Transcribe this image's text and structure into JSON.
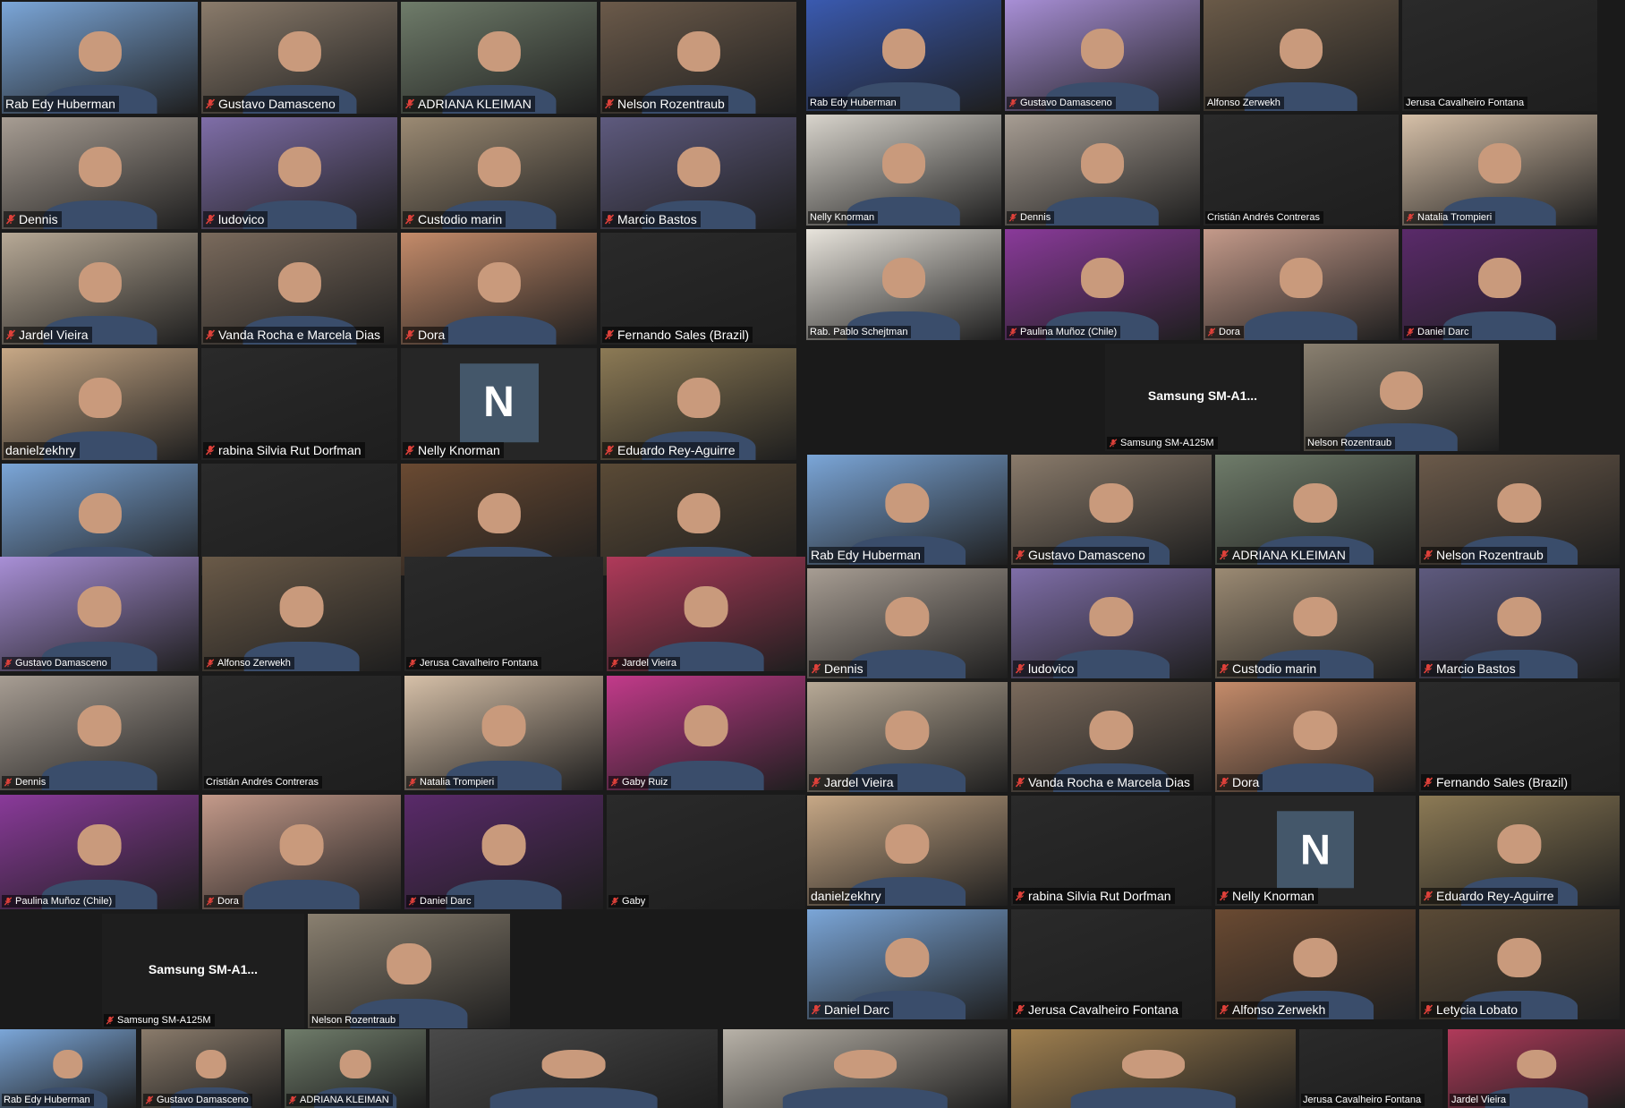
{
  "theme": {
    "background": "#1a1a1a",
    "speaking_border": "#d2e34a",
    "label_bg": "rgba(0,0,0,0.55)",
    "mic_muted_color": "#e0413a",
    "avatar_bg": "#44576a"
  },
  "icons": {
    "muted": "mic-muted-icon"
  },
  "panels": [
    {
      "id": "left",
      "tiles": [
        {
          "name": "Rab Edy Huberman",
          "muted": false,
          "bg": "#7ba6d8"
        },
        {
          "name": "Gustavo Damasceno",
          "muted": true,
          "bg": "#8a7b6b"
        },
        {
          "name": "ADRIANA KLEIMAN",
          "muted": true,
          "bg": "#6f7c6a"
        },
        {
          "name": "Nelson Rozentraub",
          "muted": true,
          "bg": "#6b5a4a"
        },
        {
          "name": "Dennis",
          "muted": true,
          "bg": "#a79d93"
        },
        {
          "name": "ludovico",
          "muted": true,
          "bg": "#7f6ea8"
        },
        {
          "name": "Custodio marin",
          "muted": true,
          "bg": "#9b8a73"
        },
        {
          "name": "Marcio Bastos",
          "muted": true,
          "bg": "#5e5a7e"
        },
        {
          "name": "Jardel Vieira",
          "muted": true,
          "bg": "#b7a996"
        },
        {
          "name": "Vanda Rocha e Marcela Dias",
          "muted": true,
          "bg": "#7a6a5c"
        },
        {
          "name": "Dora",
          "muted": true,
          "bg": "#c48b6a"
        },
        {
          "name": "Fernando Sales (Brazil)",
          "muted": true,
          "bg": "#2a2a2a"
        },
        {
          "name": "danielzekhry",
          "muted": false,
          "bg": "#c7a886",
          "speaking": true
        },
        {
          "name": "rabina Silvia Rut Dorfman",
          "muted": true,
          "bg": "#2a2a2a"
        },
        {
          "name": "Nelly Knorman",
          "muted": true,
          "avatar": "N"
        },
        {
          "name": "Eduardo Rey-Aguirre",
          "muted": true,
          "bg": "#8c7a55"
        },
        {
          "name": "",
          "muted": false,
          "bg": "#7ba6d8"
        },
        {
          "name": "",
          "muted": false,
          "bg": "#2a2a2a"
        },
        {
          "name": "",
          "muted": false,
          "bg": "#6a4a32"
        },
        {
          "name": "",
          "muted": false,
          "bg": "#5a4a36"
        }
      ]
    },
    {
      "id": "left-gallery-small",
      "tiles": [
        {
          "name": "Gustavo Damasceno",
          "muted": true,
          "bg": "#a88fd6"
        },
        {
          "name": "Alfonso Zerwekh",
          "muted": true,
          "bg": "#6a5a48"
        },
        {
          "name": "Jerusa Cavalheiro Fontana",
          "muted": true,
          "bg": "#2a2a2a"
        },
        {
          "name": "Jardel Vieira",
          "muted": true,
          "bg": "#b03a5a"
        },
        {
          "name": "Dennis",
          "muted": true,
          "bg": "#a79d93"
        },
        {
          "name": "Cristián Andrés Contreras",
          "muted": false,
          "bg": "#2a2a2a"
        },
        {
          "name": "Natalia Trompieri",
          "muted": true,
          "bg": "#d6c0a8"
        },
        {
          "name": "Gaby Ruiz",
          "muted": true,
          "bg": "#c23a8a"
        },
        {
          "name": "Paulina Muñoz (Chile)",
          "muted": true,
          "bg": "#8a3a9a"
        },
        {
          "name": "Dora",
          "muted": true,
          "bg": "#c49a8a"
        },
        {
          "name": "Daniel Darc",
          "muted": true,
          "bg": "#5a2a6a"
        },
        {
          "name": "Gaby",
          "muted": true,
          "bg": "#2a2a2a"
        }
      ],
      "device": {
        "title": "Samsung  SM-A1...",
        "name": "Samsung SM-A125M"
      },
      "last": {
        "name": "Nelson Rozentraub",
        "muted": false,
        "bg": "#8a8070"
      }
    },
    {
      "id": "right-top",
      "tiles": [
        {
          "name": "Rab Edy Huberman",
          "muted": false,
          "bg": "#3a5ab0"
        },
        {
          "name": "Gustavo Damasceno",
          "muted": true,
          "bg": "#a88fd6"
        },
        {
          "name": "Alfonso Zerwekh",
          "muted": false,
          "bg": "#6a5a48"
        },
        {
          "name": "Jerusa Cavalheiro Fontana",
          "muted": false,
          "bg": "#2a2a2a"
        },
        {
          "name": "Nelly Knorman",
          "muted": false,
          "bg": "#d8d4cc"
        },
        {
          "name": "Dennis",
          "muted": true,
          "bg": "#a79d93"
        },
        {
          "name": "Cristián Andrés Contreras",
          "muted": false,
          "bg": "#2a2a2a"
        },
        {
          "name": "Natalia Trompieri",
          "muted": true,
          "bg": "#d6c0a8"
        },
        {
          "name": "Rab. Pablo Schejtman",
          "muted": false,
          "bg": "#e8e4dc",
          "speaking": true
        },
        {
          "name": "Paulina Muñoz (Chile)",
          "muted": true,
          "bg": "#8a3a9a"
        },
        {
          "name": "Dora",
          "muted": true,
          "bg": "#c49a8a"
        },
        {
          "name": "Daniel Darc",
          "muted": true,
          "bg": "#5a2a6a"
        }
      ],
      "device": {
        "title": "Samsung  SM-A1...",
        "name": "Samsung SM-A125M"
      },
      "last": {
        "name": "Nelson Rozentraub",
        "muted": false,
        "bg": "#8a8070"
      }
    },
    {
      "id": "right-bottom",
      "tiles": [
        {
          "name": "Rab Edy Huberman",
          "muted": false,
          "bg": "#7ba6d8"
        },
        {
          "name": "Gustavo Damasceno",
          "muted": true,
          "bg": "#8a7b6b"
        },
        {
          "name": "ADRIANA KLEIMAN",
          "muted": true,
          "bg": "#6f7c6a"
        },
        {
          "name": "Nelson Rozentraub",
          "muted": true,
          "bg": "#6b5a4a"
        },
        {
          "name": "Dennis",
          "muted": true,
          "bg": "#a79d93"
        },
        {
          "name": "ludovico",
          "muted": true,
          "bg": "#7f6ea8"
        },
        {
          "name": "Custodio marin",
          "muted": true,
          "bg": "#9b8a73"
        },
        {
          "name": "Marcio Bastos",
          "muted": true,
          "bg": "#5e5a7e"
        },
        {
          "name": "Jardel Vieira",
          "muted": true,
          "bg": "#b7a996"
        },
        {
          "name": "Vanda Rocha e Marcela Dias",
          "muted": true,
          "bg": "#7a6a5c"
        },
        {
          "name": "Dora",
          "muted": true,
          "bg": "#c48b6a"
        },
        {
          "name": "Fernando Sales (Brazil)",
          "muted": true,
          "bg": "#2a2a2a"
        },
        {
          "name": "danielzekhry",
          "muted": false,
          "bg": "#c7a886",
          "speaking": true
        },
        {
          "name": "rabina Silvia Rut Dorfman",
          "muted": true,
          "bg": "#2a2a2a"
        },
        {
          "name": "Nelly Knorman",
          "muted": true,
          "avatar": "N"
        },
        {
          "name": "Eduardo Rey-Aguirre",
          "muted": true,
          "bg": "#8c7a55"
        },
        {
          "name": "Daniel Darc",
          "muted": true,
          "bg": "#7ba6d8"
        },
        {
          "name": "Jerusa Cavalheiro Fontana",
          "muted": true,
          "bg": "#2a2a2a"
        },
        {
          "name": "Alfonso Zerwekh",
          "muted": true,
          "bg": "#6a4a32"
        },
        {
          "name": "Letycia Lobato",
          "muted": true,
          "bg": "#5a4a36"
        }
      ]
    },
    {
      "id": "bottom-strip",
      "tiles": [
        {
          "name": "Rab Edy Huberman",
          "muted": false,
          "bg": "#7ba6d8"
        },
        {
          "name": "Gustavo Damasceno",
          "muted": true,
          "bg": "#8a7b6b"
        },
        {
          "name": "ADRIANA KLEIMAN",
          "muted": true,
          "bg": "#6f7c6a"
        },
        {
          "name": "",
          "muted": false,
          "bg": "#4a4a4a"
        },
        {
          "name": "",
          "muted": false,
          "bg": "#b8b2a8"
        },
        {
          "name": "",
          "muted": false,
          "bg": "#a08050"
        },
        {
          "name": "Jerusa Cavalheiro Fontana",
          "muted": false,
          "bg": "#2a2a2a"
        },
        {
          "name": "Jardel Vieira",
          "muted": false,
          "bg": "#b03a5a"
        }
      ]
    }
  ]
}
